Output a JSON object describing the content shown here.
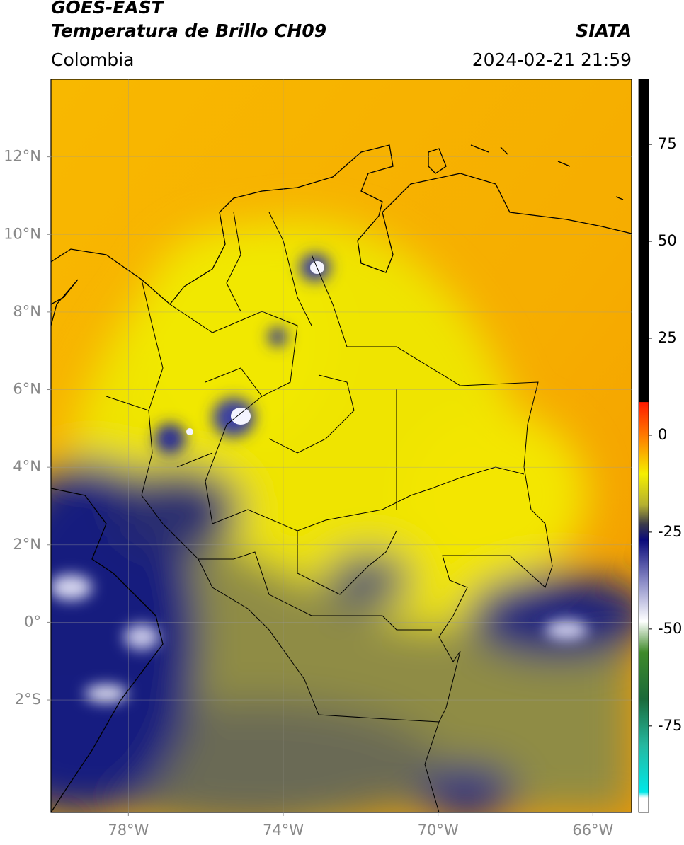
{
  "header": {
    "title": "GOES-EAST",
    "subtitle": "Temperatura de Brillo CH09",
    "region": "Colombia",
    "source": "SIATA",
    "datetime": "2024-02-21 21:59"
  },
  "map": {
    "lon_range": [
      -80,
      -65
    ],
    "lat_range": [
      -4.9,
      14
    ],
    "lon_ticks": [
      {
        "value": -78,
        "label": "78°W"
      },
      {
        "value": -74,
        "label": "74°W"
      },
      {
        "value": -70,
        "label": "70°W"
      },
      {
        "value": -66,
        "label": "66°W"
      }
    ],
    "lat_ticks": [
      {
        "value": 12,
        "label": "12°N"
      },
      {
        "value": 10,
        "label": "10°N"
      },
      {
        "value": 8,
        "label": "8°N"
      },
      {
        "value": 6,
        "label": "6°N"
      },
      {
        "value": 4,
        "label": "4°N"
      },
      {
        "value": 2,
        "label": "2°N"
      },
      {
        "value": 0,
        "label": "0°"
      },
      {
        "value": -2,
        "label": "2°S"
      }
    ],
    "grid": true
  },
  "colorbar": {
    "range": [
      -97.3,
      91.8
    ],
    "ticks": [
      75,
      50,
      25,
      0,
      -25,
      -50,
      -75
    ],
    "stops": [
      {
        "value": 91.8,
        "color": "#000000"
      },
      {
        "value": 8.6,
        "color": "#000000"
      },
      {
        "value": 8.5,
        "color": "#ff1a00"
      },
      {
        "value": 0,
        "color": "#ff7a00"
      },
      {
        "value": -10,
        "color": "#f5ef00"
      },
      {
        "value": -18,
        "color": "#b5b030"
      },
      {
        "value": -23,
        "color": "#3a3a4a"
      },
      {
        "value": -27,
        "color": "#0a0a7a"
      },
      {
        "value": -38,
        "color": "#8d8ec8"
      },
      {
        "value": -48,
        "color": "#ffffff"
      },
      {
        "value": -56,
        "color": "#3f8a2a"
      },
      {
        "value": -68,
        "color": "#1a6a3a"
      },
      {
        "value": -80,
        "color": "#25b8a0"
      },
      {
        "value": -92,
        "color": "#00e8e8"
      },
      {
        "value": -93.5,
        "color": "#ffffff"
      },
      {
        "value": -97.3,
        "color": "#ffffff"
      }
    ]
  }
}
